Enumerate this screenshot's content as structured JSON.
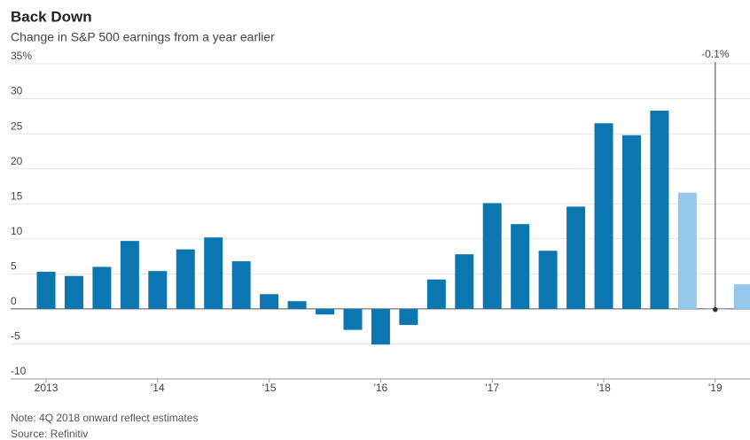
{
  "chart_data": {
    "type": "bar",
    "title": "Back Down",
    "subtitle": "Change in S&P 500 earnings from a year earlier",
    "categories": [
      "2013",
      null,
      null,
      null,
      "'14",
      null,
      null,
      null,
      "'15",
      null,
      null,
      null,
      "'16",
      null,
      null,
      null,
      "'17",
      null,
      null,
      null,
      "'18",
      null,
      null,
      null,
      "'19",
      null
    ],
    "values": [
      5.3,
      4.7,
      6.0,
      9.7,
      5.4,
      8.5,
      10.2,
      6.8,
      2.1,
      1.1,
      -0.8,
      -3.0,
      -5.1,
      -2.3,
      4.2,
      7.8,
      15.1,
      12.1,
      8.3,
      14.6,
      26.5,
      24.8,
      28.3,
      16.6,
      -0.1,
      3.5
    ],
    "colors": [
      "#0b76b0",
      "#0b76b0",
      "#0b76b0",
      "#0b76b0",
      "#0b76b0",
      "#0b76b0",
      "#0b76b0",
      "#0b76b0",
      "#0b76b0",
      "#0b76b0",
      "#0b76b0",
      "#0b76b0",
      "#0b76b0",
      "#0b76b0",
      "#0b76b0",
      "#0b76b0",
      "#0b76b0",
      "#0b76b0",
      "#0b76b0",
      "#0b76b0",
      "#0b76b0",
      "#0b76b0",
      "#0b76b0",
      "#93c8ec",
      "#93c8ec",
      "#93c8ec"
    ],
    "ylim": [
      -10,
      35
    ],
    "yticks": [
      {
        "value": 35,
        "label": "35%"
      },
      30,
      25,
      20,
      15,
      10,
      5,
      0,
      -5,
      -10
    ],
    "grid": true,
    "annotation": {
      "text": "-0.1%",
      "index": 24
    },
    "note": "Note: 4Q 2018 onward reflect estimates",
    "source": "Source: Refinitiv"
  }
}
